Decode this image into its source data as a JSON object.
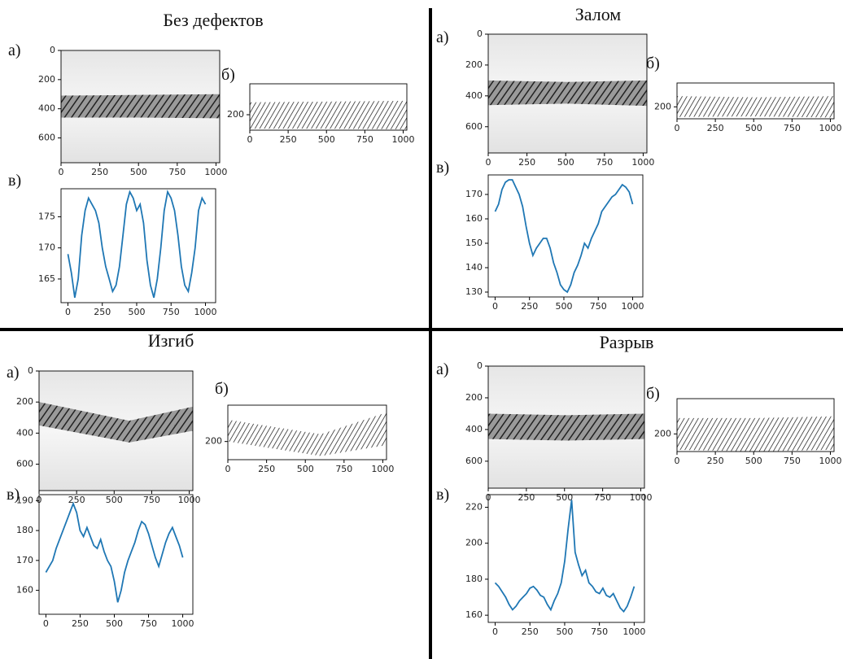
{
  "panels": [
    {
      "title": "Без дефектов",
      "labels": [
        "а)",
        "б)",
        "в)"
      ]
    },
    {
      "title": "Залом",
      "labels": [
        "а)",
        "б)",
        "в)"
      ]
    },
    {
      "title": "Изгиб",
      "labels": [
        "а)",
        "б)",
        "в)"
      ]
    },
    {
      "title": "Разрыв",
      "labels": [
        "а)",
        "б)",
        "в)"
      ]
    }
  ],
  "chart_data": [
    {
      "type": "image",
      "xlim": [
        0,
        1024
      ],
      "ylim": [
        770,
        0
      ],
      "xticks": [
        0,
        250,
        500,
        750,
        1000
      ],
      "yticks": [
        0,
        200,
        400,
        600
      ]
    },
    {
      "type": "image",
      "xlim": [
        0,
        1024
      ],
      "ylim": [
        300,
        0
      ],
      "xticks": [
        0,
        250,
        500,
        750,
        1000
      ],
      "yticks": [
        200
      ]
    },
    {
      "type": "line",
      "color": "#1f77b4",
      "xlim": [
        -50,
        1074
      ],
      "ylim": [
        161.2,
        179.5
      ],
      "xticks": [
        0,
        250,
        500,
        750,
        1000
      ],
      "yticks": [
        165,
        170,
        175
      ],
      "x": [
        0,
        25,
        50,
        75,
        100,
        125,
        150,
        175,
        200,
        225,
        250,
        275,
        300,
        325,
        350,
        375,
        400,
        425,
        450,
        475,
        500,
        525,
        550,
        575,
        600,
        625,
        650,
        675,
        700,
        725,
        750,
        775,
        800,
        825,
        850,
        875,
        900,
        925,
        950,
        975,
        1000
      ],
      "values": [
        169,
        166,
        162,
        165,
        172,
        176,
        178,
        177,
        176,
        174,
        170,
        167,
        165,
        163,
        164,
        167,
        172,
        177,
        179,
        178,
        176,
        177,
        174,
        168,
        164,
        162,
        165,
        170,
        176,
        179,
        178,
        176,
        172,
        167,
        164,
        163,
        166,
        170,
        176,
        178,
        177
      ]
    },
    {
      "type": "image",
      "xlim": [
        0,
        1024
      ],
      "ylim": [
        770,
        0
      ],
      "xticks": [
        0,
        250,
        500,
        750,
        1000
      ],
      "yticks": [
        0,
        200,
        400,
        600
      ]
    },
    {
      "type": "image",
      "xlim": [
        0,
        1024
      ],
      "ylim": [
        300,
        0
      ],
      "xticks": [
        0,
        250,
        500,
        750,
        1000
      ],
      "yticks": [
        200
      ]
    },
    {
      "type": "line",
      "color": "#1f77b4",
      "xlim": [
        -50,
        1074
      ],
      "ylim": [
        128,
        178
      ],
      "xticks": [
        0,
        250,
        500,
        750,
        1000
      ],
      "yticks": [
        130,
        140,
        150,
        160,
        170
      ],
      "x": [
        0,
        25,
        50,
        75,
        100,
        125,
        150,
        175,
        200,
        225,
        250,
        275,
        300,
        325,
        350,
        375,
        400,
        425,
        450,
        475,
        500,
        525,
        550,
        575,
        600,
        625,
        650,
        675,
        700,
        725,
        750,
        775,
        800,
        825,
        850,
        875,
        900,
        925,
        950,
        975,
        1000
      ],
      "values": [
        163,
        166,
        172,
        175,
        176,
        176,
        173,
        170,
        165,
        157,
        150,
        145,
        148,
        150,
        152,
        152,
        148,
        142,
        138,
        133,
        131,
        130,
        133,
        138,
        141,
        145,
        150,
        148,
        152,
        155,
        158,
        163,
        165,
        167,
        169,
        170,
        172,
        174,
        173,
        171,
        166
      ]
    },
    {
      "type": "image",
      "xlim": [
        0,
        1024
      ],
      "ylim": [
        770,
        0
      ],
      "xticks": [
        0,
        250,
        500,
        750,
        1000
      ],
      "yticks": [
        0,
        200,
        400,
        600
      ]
    },
    {
      "type": "image",
      "xlim": [
        0,
        1024
      ],
      "ylim": [
        300,
        0
      ],
      "xticks": [
        0,
        250,
        500,
        750,
        1000
      ],
      "yticks": [
        200
      ]
    },
    {
      "type": "line",
      "color": "#1f77b4",
      "xlim": [
        -50,
        1074
      ],
      "ylim": [
        152,
        192
      ],
      "xticks": [
        0,
        250,
        500,
        750,
        1000
      ],
      "yticks": [
        160,
        170,
        180,
        190
      ],
      "x": [
        0,
        25,
        50,
        75,
        100,
        125,
        150,
        175,
        200,
        225,
        250,
        275,
        300,
        325,
        350,
        375,
        400,
        425,
        450,
        475,
        500,
        525,
        550,
        575,
        600,
        625,
        650,
        675,
        700,
        725,
        750,
        775,
        800,
        825,
        850,
        875,
        900,
        925,
        950,
        975,
        1000
      ],
      "values": [
        166,
        168,
        170,
        174,
        177,
        180,
        183,
        186,
        189,
        186,
        180,
        178,
        181,
        178,
        175,
        174,
        177,
        173,
        170,
        168,
        163,
        156,
        160,
        166,
        170,
        173,
        176,
        180,
        183,
        182,
        179,
        175,
        171,
        168,
        172,
        176,
        179,
        181,
        178,
        175,
        171
      ]
    },
    {
      "type": "image",
      "xlim": [
        0,
        1024
      ],
      "ylim": [
        770,
        0
      ],
      "xticks": [
        0,
        250,
        500,
        750,
        1000
      ],
      "yticks": [
        0,
        200,
        400,
        600
      ]
    },
    {
      "type": "image",
      "xlim": [
        0,
        1024
      ],
      "ylim": [
        300,
        0
      ],
      "xticks": [
        0,
        250,
        500,
        750,
        1000
      ],
      "yticks": [
        200
      ]
    },
    {
      "type": "line",
      "color": "#1f77b4",
      "xlim": [
        -50,
        1074
      ],
      "ylim": [
        156,
        227
      ],
      "xticks": [
        0,
        250,
        500,
        750,
        1000
      ],
      "yticks": [
        160,
        180,
        200,
        220
      ],
      "x": [
        0,
        25,
        50,
        75,
        100,
        125,
        150,
        175,
        200,
        225,
        250,
        275,
        300,
        325,
        350,
        375,
        400,
        425,
        450,
        475,
        500,
        525,
        550,
        575,
        600,
        625,
        650,
        675,
        700,
        725,
        750,
        775,
        800,
        825,
        850,
        875,
        900,
        925,
        950,
        975,
        1000
      ],
      "values": [
        178,
        176,
        173,
        170,
        166,
        163,
        165,
        168,
        170,
        172,
        175,
        176,
        174,
        171,
        170,
        166,
        163,
        168,
        172,
        178,
        190,
        208,
        224,
        195,
        188,
        182,
        185,
        178,
        176,
        173,
        172,
        175,
        171,
        170,
        172,
        168,
        164,
        162,
        165,
        170,
        176
      ]
    }
  ]
}
